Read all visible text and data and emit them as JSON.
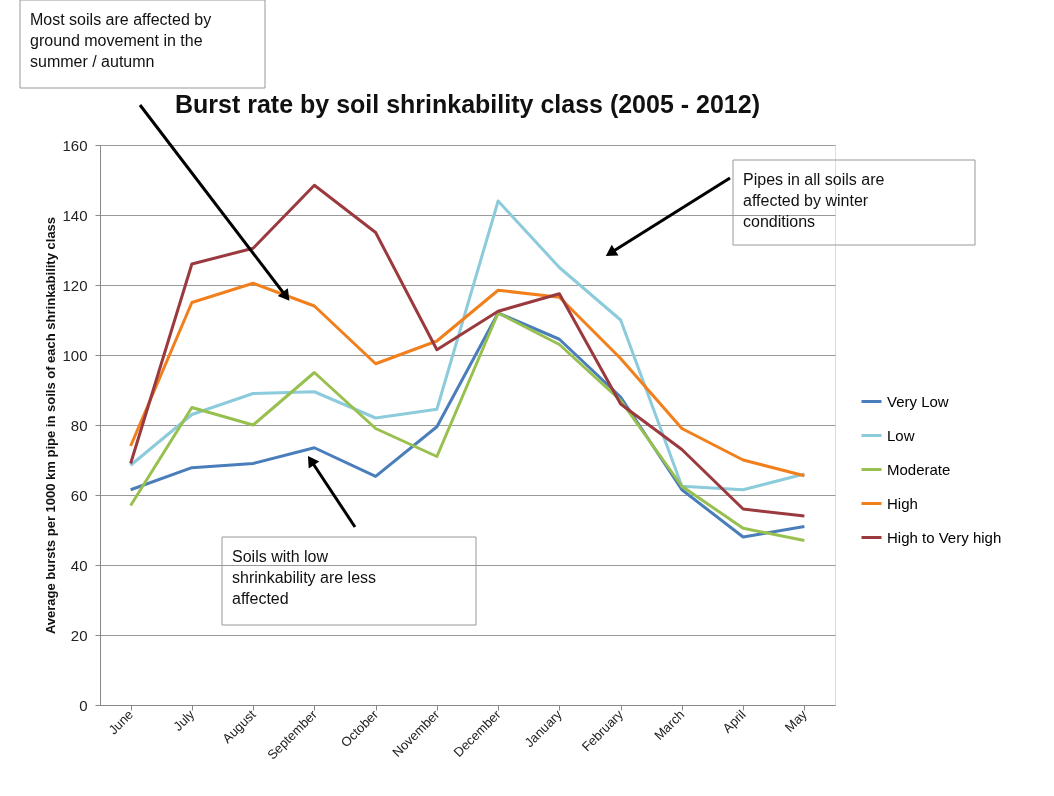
{
  "chart_data": {
    "type": "line",
    "title": "Burst rate by soil shrinkability class (2005 - 2012)",
    "ylabel": "Average bursts per 1000 km pipe in soils of each shrinkability class",
    "categories": [
      "June",
      "July",
      "August",
      "September",
      "October",
      "November",
      "December",
      "January",
      "February",
      "March",
      "April",
      "May"
    ],
    "series": [
      {
        "name": "Very Low",
        "color": "#4a7ebb",
        "values": [
          61.5,
          67.8,
          69,
          73.5,
          65.3,
          79.5,
          112,
          104.5,
          88,
          61.5,
          48,
          51
        ]
      },
      {
        "name": "Low",
        "color": "#8ccbdb",
        "values": [
          68.5,
          83,
          89,
          89.5,
          82,
          84.5,
          144,
          125,
          110,
          62.5,
          61.5,
          66
        ]
      },
      {
        "name": "Moderate",
        "color": "#98c04e",
        "values": [
          57,
          85,
          80,
          95,
          79,
          71,
          112,
          103,
          87,
          62.5,
          50.5,
          47
        ]
      },
      {
        "name": "High",
        "color": "#f07f1c",
        "values": [
          74,
          115,
          120.5,
          114,
          97.5,
          104,
          118.5,
          116.5,
          99,
          79,
          70,
          65.5
        ]
      },
      {
        "name": "High to Very high",
        "color": "#9b3a3e",
        "values": [
          69,
          126,
          130.5,
          148.5,
          135,
          101.5,
          112.5,
          117.5,
          86,
          73,
          56,
          54
        ]
      }
    ],
    "ylim": [
      0,
      160
    ],
    "yticks": [
      0,
      20,
      40,
      60,
      80,
      100,
      120,
      140,
      160
    ],
    "grid": "y",
    "legend": "right",
    "marker": "none",
    "line_style": "solid",
    "annotations": [
      "Most soils are affected by ground movement in the summer / autumn",
      "Pipes in all soils are affected by winter conditions",
      "Soils with low shrinkability are less affected"
    ]
  }
}
